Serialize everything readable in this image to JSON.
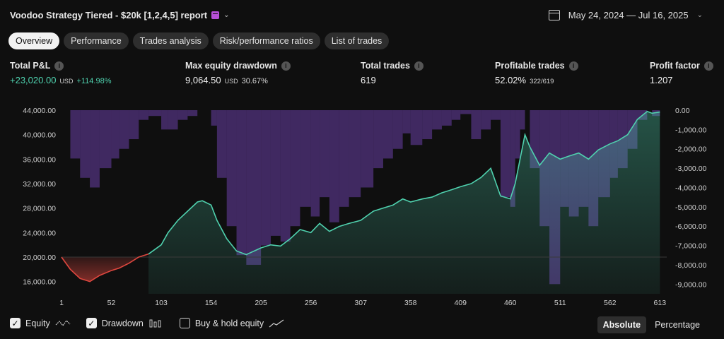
{
  "header": {
    "title": "Voodoo Strategy Tiered - $20k [1,2,4,5] report",
    "date_range": "May 24, 2024 — Jul 16, 2025"
  },
  "tabs": [
    {
      "label": "Overview",
      "active": true
    },
    {
      "label": "Performance",
      "active": false
    },
    {
      "label": "Trades analysis",
      "active": false
    },
    {
      "label": "Risk/performance ratios",
      "active": false
    },
    {
      "label": "List of trades",
      "active": false
    }
  ],
  "metrics": {
    "total_pnl": {
      "label": "Total P&L",
      "value": "+23,020.00",
      "unit": "USD",
      "sub": "+114.98%"
    },
    "max_drawdown": {
      "label": "Max equity drawdown",
      "value": "9,064.50",
      "unit": "USD",
      "sub": "30.67%"
    },
    "total_trades": {
      "label": "Total trades",
      "value": "619"
    },
    "profitable": {
      "label": "Profitable trades",
      "value": "52.02%",
      "sub": "322/619"
    },
    "profit_factor": {
      "label": "Profit factor",
      "value": "1.207"
    }
  },
  "chart_data": {
    "type": "area",
    "x": [
      1,
      10,
      20,
      30,
      40,
      52,
      60,
      70,
      80,
      90,
      103,
      110,
      120,
      130,
      140,
      145,
      154,
      160,
      170,
      180,
      190,
      205,
      215,
      225,
      235,
      245,
      256,
      265,
      275,
      285,
      295,
      307,
      320,
      330,
      340,
      350,
      358,
      370,
      380,
      390,
      400,
      409,
      420,
      430,
      440,
      450,
      460,
      465,
      470,
      475,
      480,
      490,
      500,
      511,
      520,
      530,
      540,
      550,
      562,
      570,
      580,
      590,
      600,
      605,
      613
    ],
    "equity": [
      20000,
      18000,
      16500,
      16000,
      17000,
      17800,
      18200,
      19000,
      20000,
      20500,
      22000,
      24000,
      26000,
      27500,
      29000,
      29200,
      28500,
      26000,
      23000,
      21000,
      20400,
      21500,
      22000,
      21800,
      23000,
      24500,
      24000,
      25500,
      24200,
      25000,
      25500,
      26000,
      27500,
      28000,
      28500,
      29500,
      29000,
      29500,
      29800,
      30500,
      31000,
      31500,
      32000,
      33000,
      34500,
      30000,
      29500,
      32000,
      36000,
      40000,
      38000,
      35000,
      37000,
      36000,
      36500,
      37000,
      36000,
      37500,
      38500,
      39000,
      40000,
      42500,
      43800,
      43500,
      43700
    ],
    "drawdown": [
      0,
      -2500,
      -3500,
      -4000,
      -3000,
      -2500,
      -2000,
      -1500,
      -500,
      -300,
      -1000,
      -1000,
      -500,
      -300,
      0,
      0,
      -800,
      -3500,
      -6000,
      -7500,
      -8000,
      -7000,
      -6500,
      -6800,
      -6000,
      -5000,
      -5500,
      -4500,
      -5800,
      -5000,
      -4500,
      -4000,
      -3000,
      -2500,
      -2000,
      -1200,
      -1800,
      -1500,
      -1000,
      -800,
      -500,
      -200,
      -1500,
      -1000,
      -500,
      -4500,
      -5000,
      -2500,
      -1000,
      0,
      -3000,
      -6000,
      -9000,
      -5000,
      -5500,
      -5000,
      -6000,
      -4500,
      -3500,
      -3000,
      -2000,
      -500,
      0,
      -300,
      -100
    ],
    "initial_capital": 20000,
    "ylim_left": [
      14000,
      44000
    ],
    "ylim_right": [
      -9500,
      0
    ],
    "left_ticks": [
      "44,000.00",
      "40,000.00",
      "36,000.00",
      "32,000.00",
      "28,000.00",
      "24,000.00",
      "20,000.00",
      "16,000.00"
    ],
    "left_tick_values": [
      44000,
      40000,
      36000,
      32000,
      28000,
      24000,
      20000,
      16000
    ],
    "right_ticks": [
      "0.00",
      "-1,000.00",
      "-2,000.00",
      "-3,000.00",
      "-4,000.00",
      "-5,000.00",
      "-6,000.00",
      "-7,000.00",
      "-8,000.00",
      "-9,000.00"
    ],
    "right_tick_values": [
      0,
      -1000,
      -2000,
      -3000,
      -4000,
      -5000,
      -6000,
      -7000,
      -8000,
      -9000
    ],
    "x_ticks": [
      1,
      52,
      103,
      154,
      205,
      256,
      307,
      358,
      409,
      460,
      511,
      562,
      613
    ],
    "xlim": [
      1,
      620
    ],
    "colors": {
      "profit": "#4fd1ae",
      "loss": "#e0473f",
      "drawdown": "#6a3fa6",
      "grid": "#2a2a2a"
    },
    "grid": false
  },
  "controls": {
    "equity": {
      "label": "Equity",
      "checked": true
    },
    "drawdown": {
      "label": "Drawdown",
      "checked": true
    },
    "buyhold": {
      "label": "Buy & hold equity",
      "checked": false
    },
    "absolute": "Absolute",
    "percentage": "Percentage"
  }
}
